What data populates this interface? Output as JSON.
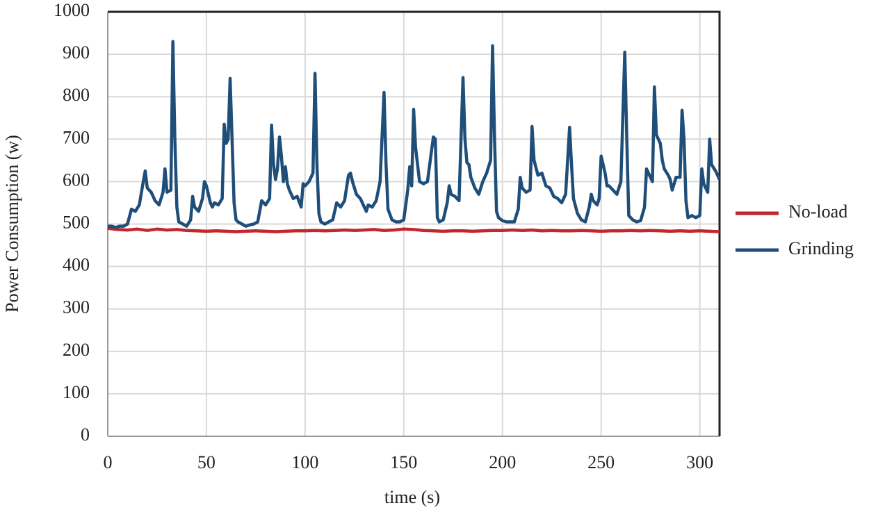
{
  "chart_data": {
    "type": "line",
    "xlabel": "time (s)",
    "ylabel": "Power Consumption (w)",
    "xlim": [
      0,
      310
    ],
    "ylim": [
      0,
      1000
    ],
    "xticks": [
      0,
      50,
      100,
      150,
      200,
      250,
      300
    ],
    "yticks": [
      0,
      100,
      200,
      300,
      400,
      500,
      600,
      700,
      800,
      900,
      1000
    ],
    "grid": true,
    "legend": "right",
    "series": [
      {
        "name": "No-load",
        "color": "#c1272d",
        "x": [
          0,
          5,
          10,
          15,
          20,
          25,
          30,
          35,
          40,
          45,
          50,
          55,
          60,
          65,
          70,
          75,
          80,
          85,
          90,
          95,
          100,
          105,
          110,
          115,
          120,
          125,
          130,
          135,
          140,
          145,
          150,
          155,
          160,
          165,
          170,
          175,
          180,
          185,
          190,
          195,
          200,
          205,
          210,
          215,
          220,
          225,
          230,
          235,
          240,
          245,
          250,
          255,
          260,
          265,
          270,
          275,
          280,
          285,
          290,
          295,
          300,
          305,
          310
        ],
        "values": [
          490,
          487,
          486,
          488,
          485,
          488,
          486,
          487,
          485,
          484,
          483,
          484,
          483,
          482,
          483,
          484,
          483,
          482,
          483,
          484,
          484,
          485,
          484,
          485,
          486,
          485,
          486,
          487,
          485,
          486,
          488,
          487,
          485,
          484,
          483,
          484,
          484,
          483,
          484,
          485,
          485,
          486,
          485,
          486,
          484,
          485,
          484,
          484,
          485,
          484,
          483,
          484,
          484,
          485,
          484,
          485,
          484,
          483,
          484,
          483,
          484,
          483,
          482
        ]
      },
      {
        "name": "Grinding",
        "color": "#1f4e79",
        "x": [
          0,
          2,
          4,
          6,
          8,
          10,
          12,
          14,
          16,
          18,
          19,
          20,
          22,
          24,
          26,
          28,
          29,
          30,
          32,
          33,
          34,
          35,
          36,
          38,
          40,
          42,
          43,
          44,
          46,
          48,
          49,
          50,
          52,
          53,
          54,
          56,
          58,
          59,
          60,
          61,
          62,
          63,
          64,
          65,
          66,
          68,
          70,
          72,
          74,
          76,
          78,
          80,
          82,
          83,
          84,
          85,
          86,
          87,
          88,
          89,
          90,
          91,
          92,
          94,
          96,
          98,
          99,
          100,
          102,
          104,
          105,
          106,
          107,
          108,
          110,
          112,
          114,
          116,
          118,
          120,
          122,
          123,
          124,
          126,
          128,
          130,
          131,
          132,
          134,
          136,
          138,
          140,
          141,
          142,
          144,
          146,
          148,
          150,
          152,
          153,
          154,
          155,
          156,
          158,
          160,
          162,
          164,
          165,
          166,
          167,
          168,
          170,
          172,
          173,
          174,
          176,
          178,
          180,
          181,
          182,
          183,
          184,
          186,
          188,
          190,
          192,
          194,
          195,
          196,
          197,
          198,
          200,
          202,
          204,
          206,
          208,
          209,
          210,
          212,
          214,
          215,
          216,
          218,
          220,
          222,
          224,
          226,
          228,
          230,
          232,
          234,
          235,
          236,
          238,
          240,
          242,
          244,
          245,
          246,
          248,
          249,
          250,
          252,
          253,
          254,
          256,
          258,
          260,
          262,
          263,
          264,
          266,
          268,
          270,
          272,
          273,
          274,
          276,
          277,
          278,
          280,
          281,
          282,
          284,
          285,
          286,
          288,
          290,
          291,
          292,
          293,
          294,
          296,
          298,
          300,
          301,
          302,
          304,
          305,
          306,
          308,
          310
        ],
        "values": [
          495,
          495,
          492,
          495,
          495,
          500,
          535,
          530,
          545,
          600,
          625,
          585,
          575,
          555,
          545,
          575,
          630,
          575,
          580,
          930,
          700,
          540,
          505,
          500,
          495,
          510,
          565,
          540,
          530,
          560,
          600,
          590,
          550,
          540,
          550,
          545,
          560,
          735,
          690,
          700,
          843,
          700,
          550,
          510,
          505,
          500,
          495,
          498,
          500,
          505,
          555,
          545,
          560,
          733,
          640,
          605,
          630,
          705,
          660,
          600,
          635,
          595,
          580,
          560,
          565,
          540,
          595,
          590,
          600,
          620,
          855,
          640,
          525,
          505,
          500,
          505,
          510,
          550,
          540,
          555,
          615,
          620,
          600,
          570,
          560,
          540,
          530,
          545,
          540,
          555,
          600,
          810,
          640,
          535,
          510,
          505,
          505,
          510,
          580,
          635,
          590,
          770,
          680,
          600,
          595,
          600,
          670,
          705,
          700,
          515,
          505,
          510,
          550,
          590,
          570,
          565,
          555,
          845,
          700,
          645,
          640,
          610,
          585,
          570,
          600,
          620,
          650,
          920,
          700,
          530,
          515,
          508,
          505,
          505,
          505,
          535,
          610,
          585,
          575,
          580,
          730,
          650,
          615,
          620,
          590,
          585,
          565,
          560,
          550,
          570,
          728,
          640,
          560,
          525,
          510,
          505,
          540,
          570,
          555,
          545,
          560,
          660,
          620,
          590,
          590,
          580,
          570,
          600,
          905,
          700,
          520,
          510,
          505,
          508,
          540,
          630,
          620,
          600,
          823,
          710,
          690,
          650,
          630,
          615,
          605,
          580,
          610,
          610,
          768,
          700,
          555,
          515,
          520,
          515,
          520,
          630,
          595,
          575,
          700,
          640,
          625,
          605
        ]
      }
    ]
  }
}
